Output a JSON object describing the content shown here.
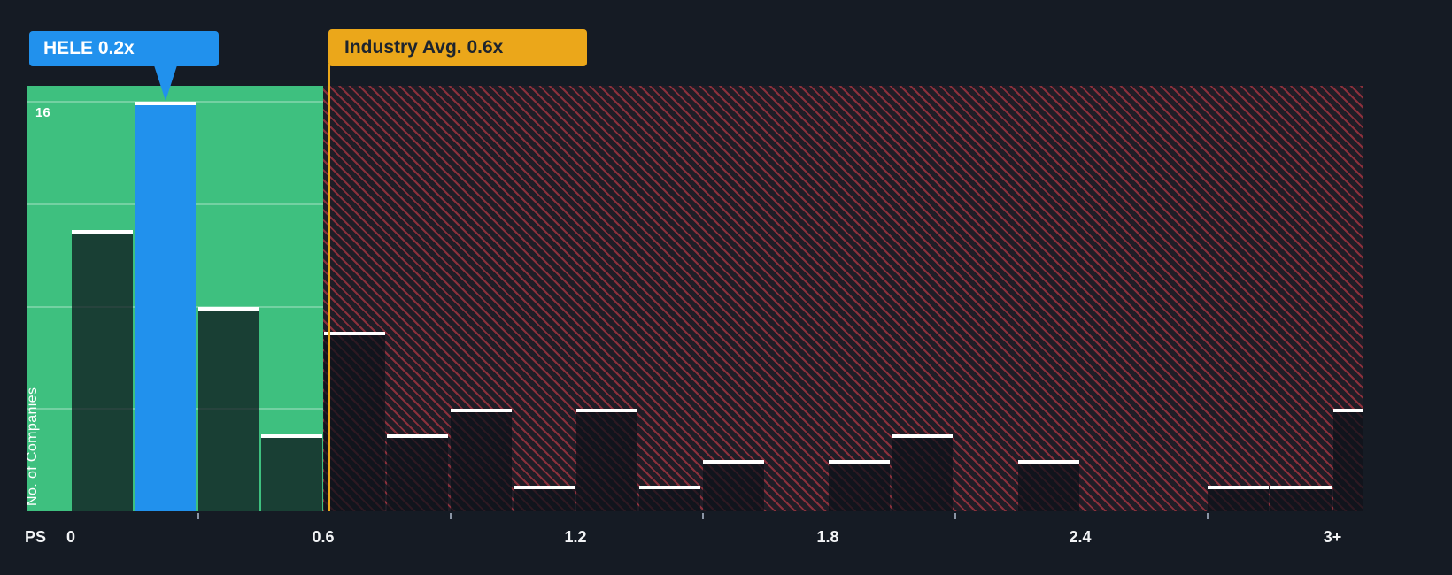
{
  "colors": {
    "background": "#151b24",
    "undervalued_green": "#3ec07f",
    "overvalued_red": "#e3404d",
    "bar_fill_dark": "rgba(12,18,26,0.74)",
    "bar_top_cap": "#ffffff",
    "company_blue": "#2191ed",
    "industry_yellow": "#eba71a",
    "axis_text": "#f2f4f6"
  },
  "chart_data": {
    "type": "bar",
    "subtype": "histogram",
    "xlabel": "PS",
    "ylabel": "No. of Companies",
    "y_max_label": "16",
    "ylim": [
      0,
      16
    ],
    "y_gridlines": [
      4,
      8,
      12,
      16
    ],
    "bin_width": 0.15,
    "x_ticks": [
      {
        "v": 0,
        "label": "0"
      },
      {
        "v": 0.6,
        "label": "0.6"
      },
      {
        "v": 1.2,
        "label": "1.2"
      },
      {
        "v": 1.8,
        "label": "1.8"
      },
      {
        "v": 2.4,
        "label": "2.4"
      },
      {
        "v": 3.0,
        "label": "3+"
      }
    ],
    "x_minor_ticks": [
      0.3,
      0.9,
      1.5,
      2.1,
      2.7
    ],
    "bars": [
      {
        "x": 0.0,
        "count": 11
      },
      {
        "x": 0.15,
        "count": 16,
        "highlight": true
      },
      {
        "x": 0.3,
        "count": 8
      },
      {
        "x": 0.45,
        "count": 3
      },
      {
        "x": 0.6,
        "count": 7
      },
      {
        "x": 0.75,
        "count": 3
      },
      {
        "x": 0.9,
        "count": 4
      },
      {
        "x": 1.05,
        "count": 1
      },
      {
        "x": 1.2,
        "count": 4
      },
      {
        "x": 1.35,
        "count": 1
      },
      {
        "x": 1.5,
        "count": 2
      },
      {
        "x": 1.65,
        "count": 0
      },
      {
        "x": 1.8,
        "count": 2
      },
      {
        "x": 1.95,
        "count": 3
      },
      {
        "x": 2.1,
        "count": 0
      },
      {
        "x": 2.25,
        "count": 2
      },
      {
        "x": 2.4,
        "count": 0
      },
      {
        "x": 2.55,
        "count": 0
      },
      {
        "x": 2.7,
        "count": 1
      },
      {
        "x": 2.85,
        "count": 1
      },
      {
        "x": 3.0,
        "count": 4
      }
    ],
    "regions": [
      {
        "from": 0,
        "to": 0.6,
        "kind": "undervalued-green"
      },
      {
        "from": 0.6,
        "to": 3.15,
        "kind": "overvalued-red-hatched"
      }
    ],
    "annotations": {
      "company": {
        "label": "HELE 0.2x",
        "x": 0.2
      },
      "industry": {
        "label": "Industry Avg. 0.6x",
        "x": 0.6
      }
    }
  }
}
